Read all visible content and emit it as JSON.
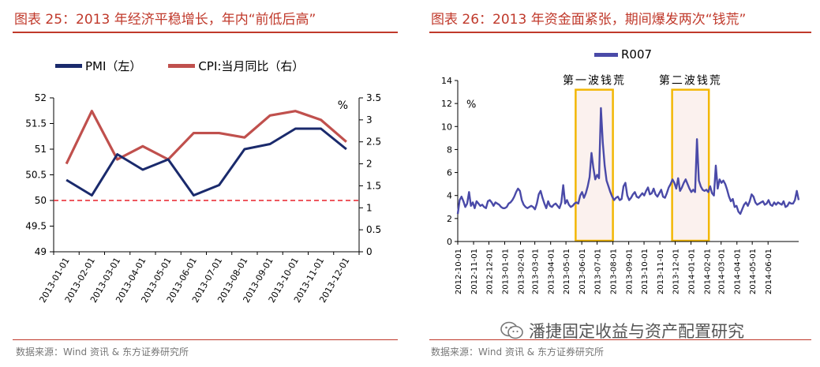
{
  "left": {
    "title": "图表 25：2013 年经济平稳增长，年内“前低后高”",
    "source": "数据来源：Wind 资讯 & 东方证券研究所",
    "colors": {
      "pmi": "#1a2a6c",
      "cpi": "#c0504d",
      "ref": "#e8202a"
    },
    "chart_data": {
      "type": "line",
      "categories": [
        "2013-01-01",
        "2013-02-01",
        "2013-03-01",
        "2013-04-01",
        "2013-05-01",
        "2013-06-01",
        "2013-07-01",
        "2013-08-01",
        "2013-09-01",
        "2013-10-01",
        "2013-11-01",
        "2013-12-01"
      ],
      "series": [
        {
          "name": "PMI（左）",
          "axis": "left",
          "values": [
            50.4,
            50.1,
            50.9,
            50.6,
            50.8,
            50.1,
            50.3,
            51.0,
            51.1,
            51.4,
            51.4,
            51.0
          ]
        },
        {
          "name": "CPI:当月同比（右）",
          "axis": "right",
          "values": [
            2.0,
            3.2,
            2.1,
            2.4,
            2.1,
            2.7,
            2.7,
            2.6,
            3.1,
            3.2,
            3.0,
            2.5
          ]
        }
      ],
      "reference_line": {
        "axis": "left",
        "value": 50,
        "style": "dashed"
      },
      "ylim_left": [
        49,
        52
      ],
      "yticks_left": [
        "49",
        "49.5",
        "50",
        "50.5",
        "51",
        "51.5",
        "52"
      ],
      "ylim_right": [
        0,
        3.5
      ],
      "yticks_right": [
        "0",
        "0.5",
        "1",
        "1.5",
        "2",
        "2.5",
        "3",
        "3.5"
      ],
      "right_unit": "%",
      "legend": [
        "PMI（左）",
        "CPI:当月同比（右）"
      ]
    }
  },
  "right": {
    "title": "图表 26：2013 年资金面紧张，期间爆发两次“钱荒”",
    "source": "数据来源：Wind 资讯 & 东方证券研究所",
    "watermark": "潘捷固定收益与资产配置研究",
    "colors": {
      "r007": "#4a4aa8",
      "highlight_border": "#f2b705",
      "highlight_fill": "#fbf1ee"
    },
    "chart_data": {
      "type": "line",
      "series": [
        {
          "name": "R007",
          "start": "2012-10-01",
          "end": "2014-07-31",
          "values": [
            2.4,
            3.6,
            3.9,
            3.5,
            3.0,
            3.3,
            4.3,
            3.1,
            3.4,
            2.9,
            3.5,
            3.3,
            3.1,
            3.2,
            3.0,
            2.9,
            3.5,
            3.6,
            3.4,
            3.1,
            3.4,
            3.3,
            3.2,
            3.0,
            2.9,
            2.9,
            3.0,
            3.3,
            3.4,
            3.6,
            3.9,
            4.3,
            4.6,
            4.4,
            3.6,
            3.2,
            3.0,
            2.9,
            3.0,
            3.1,
            3.0,
            2.8,
            3.3,
            4.1,
            4.4,
            3.8,
            3.3,
            2.9,
            3.5,
            3.1,
            3.0,
            3.2,
            3.3,
            3.1,
            2.9,
            3.4,
            4.9,
            3.3,
            3.6,
            3.2,
            3.0,
            3.1,
            3.3,
            3.4,
            3.3,
            4.0,
            4.3,
            3.8,
            4.2,
            4.8,
            5.6,
            7.7,
            6.4,
            5.4,
            5.8,
            5.5,
            11.6,
            8.6,
            6.6,
            5.3,
            4.8,
            4.3,
            3.9,
            3.6,
            3.8,
            3.9,
            3.6,
            3.7,
            4.8,
            5.1,
            4.0,
            3.6,
            3.8,
            4.1,
            4.3,
            3.9,
            3.8,
            4.0,
            4.2,
            4.0,
            4.4,
            4.7,
            4.1,
            4.2,
            4.6,
            4.1,
            3.9,
            4.2,
            4.5,
            3.9,
            3.8,
            4.2,
            4.7,
            5.0,
            5.4,
            5.1,
            4.6,
            5.5,
            4.4,
            4.7,
            5.1,
            5.4,
            5.0,
            4.6,
            4.3,
            4.5,
            4.3,
            8.9,
            5.3,
            4.8,
            4.5,
            4.4,
            4.5,
            4.3,
            4.8,
            4.2,
            4.0,
            6.6,
            4.6,
            5.4,
            5.1,
            5.3,
            5.0,
            4.5,
            3.9,
            3.5,
            3.7,
            3.0,
            3.1,
            2.6,
            2.4,
            2.8,
            3.2,
            3.4,
            3.1,
            3.5,
            4.1,
            3.9,
            3.4,
            3.2,
            3.3,
            3.4,
            3.5,
            3.2,
            3.3,
            3.6,
            3.2,
            3.1,
            3.4,
            3.2,
            3.4,
            3.3,
            3.2,
            3.5,
            3.0,
            3.1,
            3.4,
            3.3,
            3.3,
            3.6,
            4.4,
            3.6
          ]
        }
      ],
      "x_tick_labels": [
        "2012-10-01",
        "2012-11-01",
        "2012-12-01",
        "2013-01-01",
        "2013-02-01",
        "2013-03-01",
        "2013-04-01",
        "2013-05-01",
        "2013-06-01",
        "2013-07-01",
        "2013-08-01",
        "2013-09-01",
        "2013-10-01",
        "2013-11-01",
        "2013-12-01",
        "2014-01-01",
        "2014-02-01",
        "2014-03-01",
        "2014-04-01",
        "2014-05-01",
        "2014-06-01"
      ],
      "ylim": [
        0,
        14
      ],
      "yticks": [
        "0",
        "2",
        "4",
        "6",
        "8",
        "10",
        "12",
        "14"
      ],
      "y_unit": "%",
      "highlights": [
        {
          "label": "第一波钱荒",
          "from": "2013-05-20",
          "to": "2013-08-01"
        },
        {
          "label": "第二波钱荒",
          "from": "2013-11-25",
          "to": "2014-02-05"
        }
      ],
      "legend": [
        "R007"
      ]
    }
  }
}
